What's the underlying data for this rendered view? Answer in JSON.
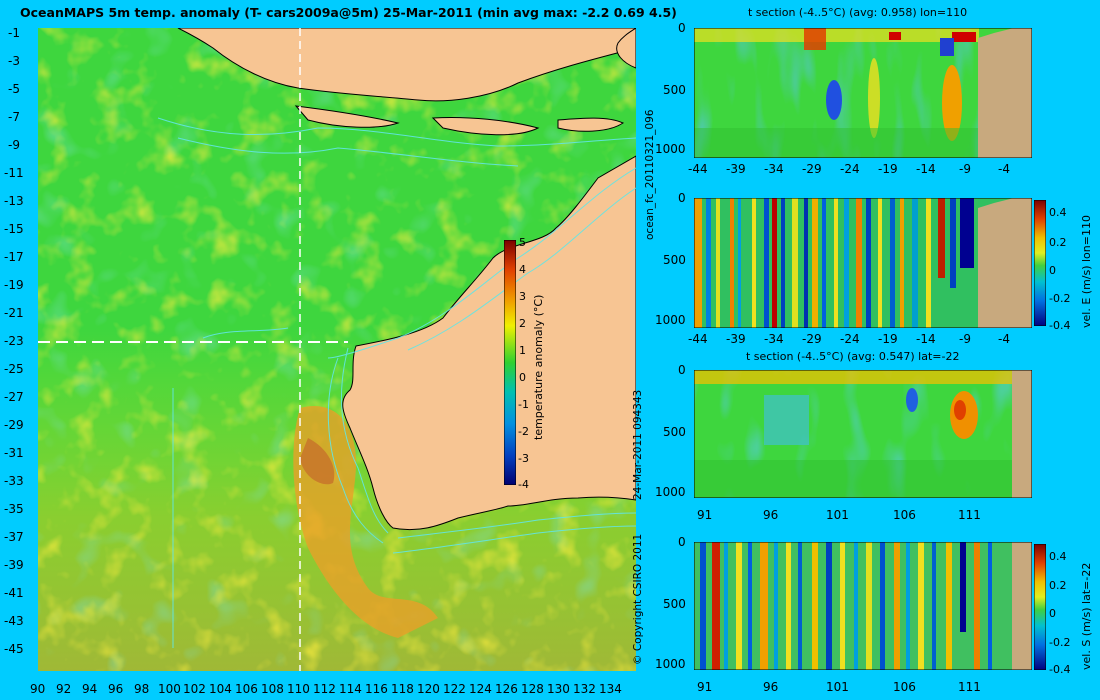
{
  "title": "OceanMAPS 5m temp. anomaly (T- cars2009a@5m) 25-Mar-2011 (min avg max: -2.2 0.69 4.5)",
  "map": {
    "lat_ticks": [
      "-1",
      "-3",
      "-5",
      "-7",
      "-9",
      "-11",
      "-13",
      "-15",
      "-17",
      "-19",
      "-21",
      "-23",
      "-25",
      "-27",
      "-29",
      "-31",
      "-33",
      "-35",
      "-37",
      "-39",
      "-41",
      "-43",
      "-45"
    ],
    "lon_ticks": [
      "90",
      "92",
      "94",
      "96",
      "98",
      "100",
      "102",
      "104",
      "106",
      "108",
      "110",
      "112",
      "114",
      "116",
      "118",
      "120",
      "122",
      "124",
      "126",
      "128",
      "130",
      "132",
      "134"
    ],
    "section_lon": 110,
    "section_lat": -22,
    "colorbar": {
      "label": "temperature anomaly (°C)",
      "ticks": [
        "5",
        "4",
        "3",
        "2",
        "1",
        "0",
        "-1",
        "-2",
        "-3",
        "-4"
      ],
      "range": [
        -4,
        5
      ]
    }
  },
  "vertical_labels": {
    "run_id": "ocean_fc_20110321_096",
    "timestamp": "24-Mar-2011 094343",
    "copyright": "© Copyright CSIRO 2011"
  },
  "panels": [
    {
      "title": "t section (-4..5°C) (avg: 0.958) lon=110",
      "y_ticks": [
        "0",
        "500",
        "1000"
      ],
      "x_ticks": [
        "-44",
        "-39",
        "-34",
        "-29",
        "-24",
        "-19",
        "-14",
        "-9",
        "-4"
      ],
      "colorbar": null
    },
    {
      "title": "",
      "y_ticks": [
        "0",
        "500",
        "1000"
      ],
      "x_ticks": [
        "-44",
        "-39",
        "-34",
        "-29",
        "-24",
        "-19",
        "-14",
        "-9",
        "-4"
      ],
      "colorbar": {
        "label": "vel. E (m/s) lon=110",
        "ticks": [
          "0.4",
          "0.2",
          "0",
          "-0.2",
          "-0.4"
        ]
      }
    },
    {
      "title": "t section (-4..5°C) (avg: 0.547) lat=-22",
      "y_ticks": [
        "0",
        "500",
        "1000"
      ],
      "x_ticks": [
        "91",
        "96",
        "101",
        "106",
        "111"
      ],
      "colorbar": null
    },
    {
      "title": "",
      "y_ticks": [
        "0",
        "500",
        "1000"
      ],
      "x_ticks": [
        "91",
        "96",
        "101",
        "106",
        "111"
      ],
      "colorbar": {
        "label": "vel. S (m/s) lat=-22",
        "ticks": [
          "0.4",
          "0.2",
          "0",
          "-0.2",
          "-0.4"
        ]
      }
    }
  ],
  "colors": {
    "background": "#00ccff",
    "ocean": "#3ed63e",
    "land": "#f7c593",
    "section_land": "#c8a97e",
    "contour": "#62e6e6"
  }
}
